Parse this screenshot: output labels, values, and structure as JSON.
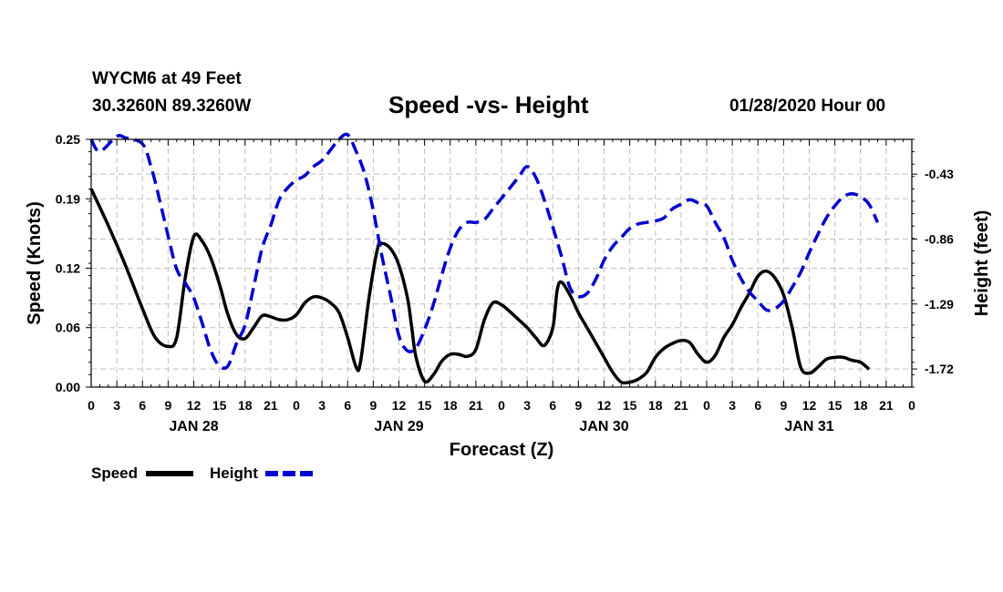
{
  "header": {
    "station": "WYCM6 at 49 Feet",
    "coords": "30.3260N 89.3260W",
    "title": "Speed -vs- Height",
    "timestamp": "01/28/2020 Hour 00"
  },
  "chart_data": {
    "type": "line",
    "xlabel": "Forecast (Z)",
    "ylabel": "Speed (Knots)",
    "y2label": "Height (feet)",
    "x_range": [
      0,
      96
    ],
    "x_tick_labels": [
      "0",
      "3",
      "6",
      "9",
      "12",
      "15",
      "18",
      "21",
      "0",
      "3",
      "6",
      "9",
      "12",
      "15",
      "18",
      "21",
      "0",
      "3",
      "6",
      "9",
      "12",
      "15",
      "18",
      "21",
      "0",
      "3",
      "6",
      "9",
      "12",
      "15",
      "18",
      "21",
      "0"
    ],
    "day_labels": [
      {
        "label": "JAN 28",
        "hour": 12
      },
      {
        "label": "JAN 29",
        "hour": 36
      },
      {
        "label": "JAN 30",
        "hour": 60
      },
      {
        "label": "JAN 31",
        "hour": 84
      }
    ],
    "ylim": [
      0.0,
      0.25
    ],
    "y_ticks": [
      "0.00",
      "0.06",
      "0.12",
      "0.19",
      "0.25"
    ],
    "y2lim": [
      -1.84,
      -0.2
    ],
    "y2_ticks": [
      "-1.72",
      "-1.29",
      "-0.86",
      "-0.43"
    ],
    "grid": true,
    "series": [
      {
        "name": "Speed",
        "axis": "left",
        "color": "#000000",
        "dash": "solid",
        "points": [
          [
            0,
            0.2
          ],
          [
            2,
            0.163
          ],
          [
            4,
            0.123
          ],
          [
            6,
            0.079
          ],
          [
            7.5,
            0.05
          ],
          [
            9,
            0.041
          ],
          [
            10,
            0.05
          ],
          [
            11,
            0.11
          ],
          [
            12,
            0.152
          ],
          [
            13,
            0.147
          ],
          [
            14,
            0.13
          ],
          [
            15,
            0.104
          ],
          [
            16,
            0.073
          ],
          [
            17,
            0.053
          ],
          [
            18,
            0.049
          ],
          [
            19,
            0.06
          ],
          [
            20,
            0.072
          ],
          [
            21,
            0.071
          ],
          [
            22,
            0.068
          ],
          [
            23,
            0.068
          ],
          [
            24,
            0.073
          ],
          [
            25,
            0.085
          ],
          [
            26,
            0.091
          ],
          [
            27,
            0.09
          ],
          [
            28,
            0.085
          ],
          [
            29,
            0.075
          ],
          [
            30,
            0.05
          ],
          [
            31,
            0.02
          ],
          [
            31.5,
            0.025
          ],
          [
            32.5,
            0.09
          ],
          [
            33.5,
            0.14
          ],
          [
            34,
            0.145
          ],
          [
            35,
            0.14
          ],
          [
            36,
            0.123
          ],
          [
            37,
            0.09
          ],
          [
            37.5,
            0.06
          ],
          [
            38,
            0.03
          ],
          [
            39,
            0.006
          ],
          [
            40,
            0.012
          ],
          [
            41,
            0.026
          ],
          [
            42,
            0.033
          ],
          [
            43,
            0.033
          ],
          [
            44,
            0.031
          ],
          [
            45,
            0.038
          ],
          [
            46,
            0.068
          ],
          [
            47,
            0.085
          ],
          [
            48,
            0.083
          ],
          [
            49,
            0.076
          ],
          [
            50,
            0.068
          ],
          [
            51,
            0.06
          ],
          [
            52,
            0.05
          ],
          [
            53,
            0.042
          ],
          [
            54,
            0.06
          ],
          [
            54.5,
            0.097
          ],
          [
            55,
            0.106
          ],
          [
            56,
            0.093
          ],
          [
            57,
            0.075
          ],
          [
            58,
            0.06
          ],
          [
            59,
            0.045
          ],
          [
            60,
            0.03
          ],
          [
            61,
            0.015
          ],
          [
            62,
            0.005
          ],
          [
            63,
            0.005
          ],
          [
            64,
            0.008
          ],
          [
            65,
            0.015
          ],
          [
            66,
            0.03
          ],
          [
            67,
            0.039
          ],
          [
            68,
            0.044
          ],
          [
            69,
            0.047
          ],
          [
            70,
            0.045
          ],
          [
            71,
            0.033
          ],
          [
            72,
            0.025
          ],
          [
            73,
            0.032
          ],
          [
            74,
            0.05
          ],
          [
            75,
            0.063
          ],
          [
            76,
            0.08
          ],
          [
            77,
            0.095
          ],
          [
            78,
            0.112
          ],
          [
            79,
            0.117
          ],
          [
            80,
            0.11
          ],
          [
            81,
            0.093
          ],
          [
            82,
            0.06
          ],
          [
            83,
            0.02
          ],
          [
            84,
            0.014
          ],
          [
            85,
            0.02
          ],
          [
            86,
            0.028
          ],
          [
            87,
            0.03
          ],
          [
            88,
            0.03
          ],
          [
            89,
            0.027
          ],
          [
            90,
            0.025
          ],
          [
            91,
            0.018
          ]
        ]
      },
      {
        "name": "Height",
        "axis": "right",
        "color": "#0000cc",
        "dash": "dashed",
        "points": [
          [
            0,
            -0.2
          ],
          [
            1,
            -0.28
          ],
          [
            3,
            -0.18
          ],
          [
            4,
            -0.19
          ],
          [
            6,
            -0.23
          ],
          [
            7,
            -0.38
          ],
          [
            8,
            -0.6
          ],
          [
            9,
            -0.84
          ],
          [
            10,
            -1.06
          ],
          [
            11,
            -1.15
          ],
          [
            12,
            -1.25
          ],
          [
            13,
            -1.42
          ],
          [
            14,
            -1.6
          ],
          [
            15,
            -1.7
          ],
          [
            16,
            -1.7
          ],
          [
            17,
            -1.55
          ],
          [
            18,
            -1.43
          ],
          [
            19,
            -1.18
          ],
          [
            20,
            -0.92
          ],
          [
            21,
            -0.77
          ],
          [
            22,
            -0.6
          ],
          [
            23,
            -0.52
          ],
          [
            24,
            -0.47
          ],
          [
            25,
            -0.44
          ],
          [
            26,
            -0.38
          ],
          [
            27,
            -0.34
          ],
          [
            28,
            -0.27
          ],
          [
            29,
            -0.2
          ],
          [
            30,
            -0.17
          ],
          [
            31,
            -0.28
          ],
          [
            32,
            -0.43
          ],
          [
            33,
            -0.67
          ],
          [
            34,
            -0.97
          ],
          [
            35,
            -1.23
          ],
          [
            36,
            -1.5
          ],
          [
            37,
            -1.6
          ],
          [
            38,
            -1.58
          ],
          [
            39,
            -1.46
          ],
          [
            40,
            -1.3
          ],
          [
            41,
            -1.1
          ],
          [
            42,
            -0.92
          ],
          [
            43,
            -0.8
          ],
          [
            44,
            -0.75
          ],
          [
            45,
            -0.75
          ],
          [
            46,
            -0.73
          ],
          [
            47,
            -0.66
          ],
          [
            48,
            -0.59
          ],
          [
            49,
            -0.52
          ],
          [
            50,
            -0.45
          ],
          [
            51,
            -0.38
          ],
          [
            52,
            -0.45
          ],
          [
            53,
            -0.6
          ],
          [
            54,
            -0.78
          ],
          [
            55,
            -0.97
          ],
          [
            56,
            -1.18
          ],
          [
            57,
            -1.24
          ],
          [
            58,
            -1.22
          ],
          [
            59,
            -1.13
          ],
          [
            60,
            -1.0
          ],
          [
            61,
            -0.91
          ],
          [
            62,
            -0.85
          ],
          [
            63,
            -0.79
          ],
          [
            64,
            -0.76
          ],
          [
            65,
            -0.75
          ],
          [
            66,
            -0.74
          ],
          [
            67,
            -0.72
          ],
          [
            68,
            -0.66
          ],
          [
            69,
            -0.63
          ],
          [
            70,
            -0.6
          ],
          [
            71,
            -0.62
          ],
          [
            72,
            -0.64
          ],
          [
            73,
            -0.75
          ],
          [
            74,
            -0.85
          ],
          [
            75,
            -1.0
          ],
          [
            76,
            -1.12
          ],
          [
            77,
            -1.21
          ],
          [
            78,
            -1.27
          ],
          [
            79,
            -1.33
          ],
          [
            80,
            -1.32
          ],
          [
            81,
            -1.27
          ],
          [
            82,
            -1.18
          ],
          [
            83,
            -1.08
          ],
          [
            84,
            -0.95
          ],
          [
            85,
            -0.83
          ],
          [
            86,
            -0.72
          ],
          [
            87,
            -0.64
          ],
          [
            88,
            -0.58
          ],
          [
            89,
            -0.56
          ],
          [
            90,
            -0.58
          ],
          [
            91,
            -0.63
          ],
          [
            92,
            -0.75
          ]
        ]
      }
    ],
    "legend": {
      "position": "bottom-left",
      "items": [
        {
          "label": "Speed",
          "color": "#000000",
          "dash": "solid"
        },
        {
          "label": "Height",
          "color": "#0000cc",
          "dash": "dashed"
        }
      ]
    }
  }
}
